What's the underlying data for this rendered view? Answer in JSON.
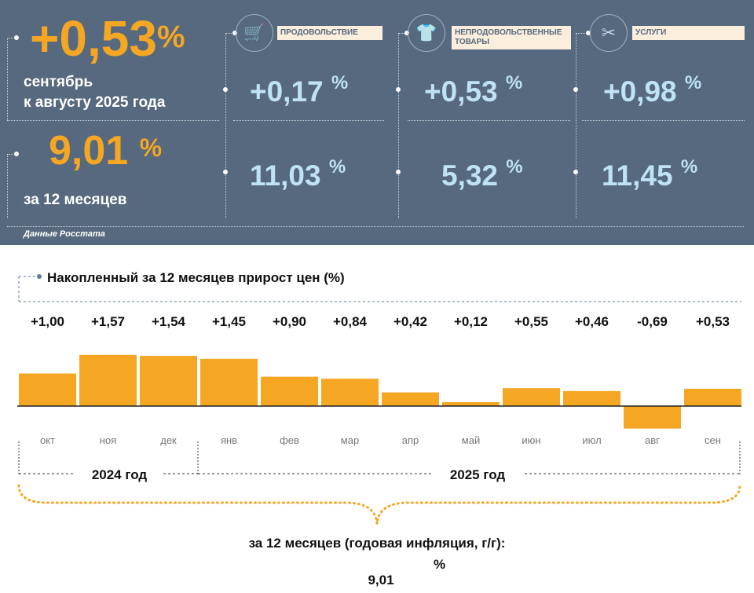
{
  "header": {
    "monthly_value": "+0,53",
    "monthly_caption_1": "сентябрь",
    "monthly_caption_2": "к августу 2025 года",
    "annual_value": "9,01",
    "annual_caption": "за 12 месяцев",
    "percent": "%",
    "source": "Данные Росстата",
    "categories": [
      {
        "label": "ПРОДОВОЛЬСТВИЕ",
        "icon": "shopping-cart-icon",
        "monthly": "+0,17",
        "annual": "11,03"
      },
      {
        "label": "НЕПРОДОВОЛЬСТВЕННЫЕ ТОВАРЫ",
        "icon": "clothes-bag-icon",
        "monthly": "+0,53",
        "annual": "5,32"
      },
      {
        "label": "УСЛУГИ",
        "icon": "comb-scissors-icon",
        "monthly": "+0,98",
        "annual": "11,45"
      }
    ]
  },
  "colors": {
    "panel": "#56697e",
    "accent": "#f5a623",
    "value_blue": "#bfe2f4",
    "bar": "#f5a623"
  },
  "chart_data": {
    "type": "bar",
    "title": "Накопленный за 12 месяцев прирост цен (%)",
    "categories": [
      "окт",
      "ноя",
      "дек",
      "янв",
      "фев",
      "мар",
      "апр",
      "май",
      "июн",
      "июл",
      "авг",
      "сен"
    ],
    "values": [
      1.0,
      1.57,
      1.54,
      1.45,
      0.9,
      0.84,
      0.42,
      0.12,
      0.55,
      0.46,
      -0.69,
      0.53
    ],
    "data_labels": [
      "+1,00",
      "+1,57",
      "+1,54",
      "+1,45",
      "+0,90",
      "+0,84",
      "+0,42",
      "+0,12",
      "+0,55",
      "+0,46",
      "-0,69",
      "+0,53"
    ],
    "year_groups": [
      {
        "label": "2024 год",
        "months": 3
      },
      {
        "label": "2025 год",
        "months": 9
      }
    ],
    "footer_caption": "за 12 месяцев (годовая инфляция, г/г):",
    "footer_value": "9,01",
    "footer_percent": "%"
  }
}
